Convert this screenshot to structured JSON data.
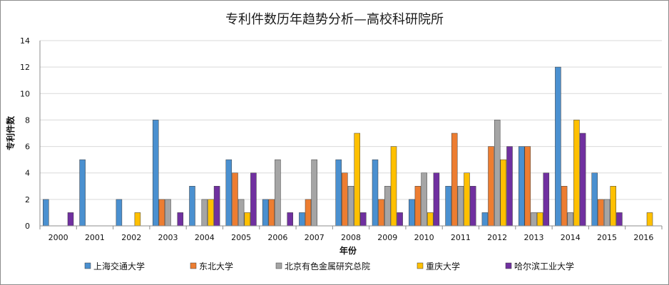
{
  "chart_data": {
    "type": "bar",
    "title": "专利件数历年趋势分析—高校科研院所",
    "xlabel": "年份",
    "ylabel": "专利件数",
    "ylim": [
      0,
      14
    ],
    "ytick_step": 2,
    "grid": true,
    "legend_position": "bottom",
    "categories": [
      "2000",
      "2001",
      "2002",
      "2003",
      "2004",
      "2005",
      "2006",
      "2007",
      "2008",
      "2009",
      "2010",
      "2011",
      "2012",
      "2013",
      "2014",
      "2015",
      "2016"
    ],
    "series": [
      {
        "name": "上海交通大学",
        "color": "#4a90d0",
        "values": [
          2,
          5,
          2,
          8,
          3,
          5,
          2,
          1,
          5,
          5,
          2,
          3,
          1,
          6,
          12,
          4,
          0
        ]
      },
      {
        "name": "东北大学",
        "color": "#ed7d31",
        "values": [
          0,
          0,
          0,
          2,
          0,
          4,
          2,
          2,
          4,
          2,
          3,
          7,
          6,
          6,
          3,
          2,
          0
        ]
      },
      {
        "name": "北京有色金属研究总院",
        "color": "#a5a5a5",
        "values": [
          0,
          0,
          0,
          2,
          2,
          2,
          5,
          5,
          3,
          3,
          4,
          3,
          8,
          1,
          1,
          2,
          0
        ]
      },
      {
        "name": "重庆大学",
        "color": "#ffc000",
        "values": [
          0,
          0,
          1,
          0,
          2,
          1,
          0,
          0,
          7,
          6,
          1,
          4,
          5,
          1,
          8,
          3,
          1
        ]
      },
      {
        "name": "哈尔滨工业大学",
        "color": "#7030a0",
        "values": [
          1,
          0,
          0,
          1,
          3,
          4,
          1,
          0,
          1,
          1,
          4,
          3,
          6,
          4,
          7,
          1,
          0
        ]
      }
    ]
  }
}
